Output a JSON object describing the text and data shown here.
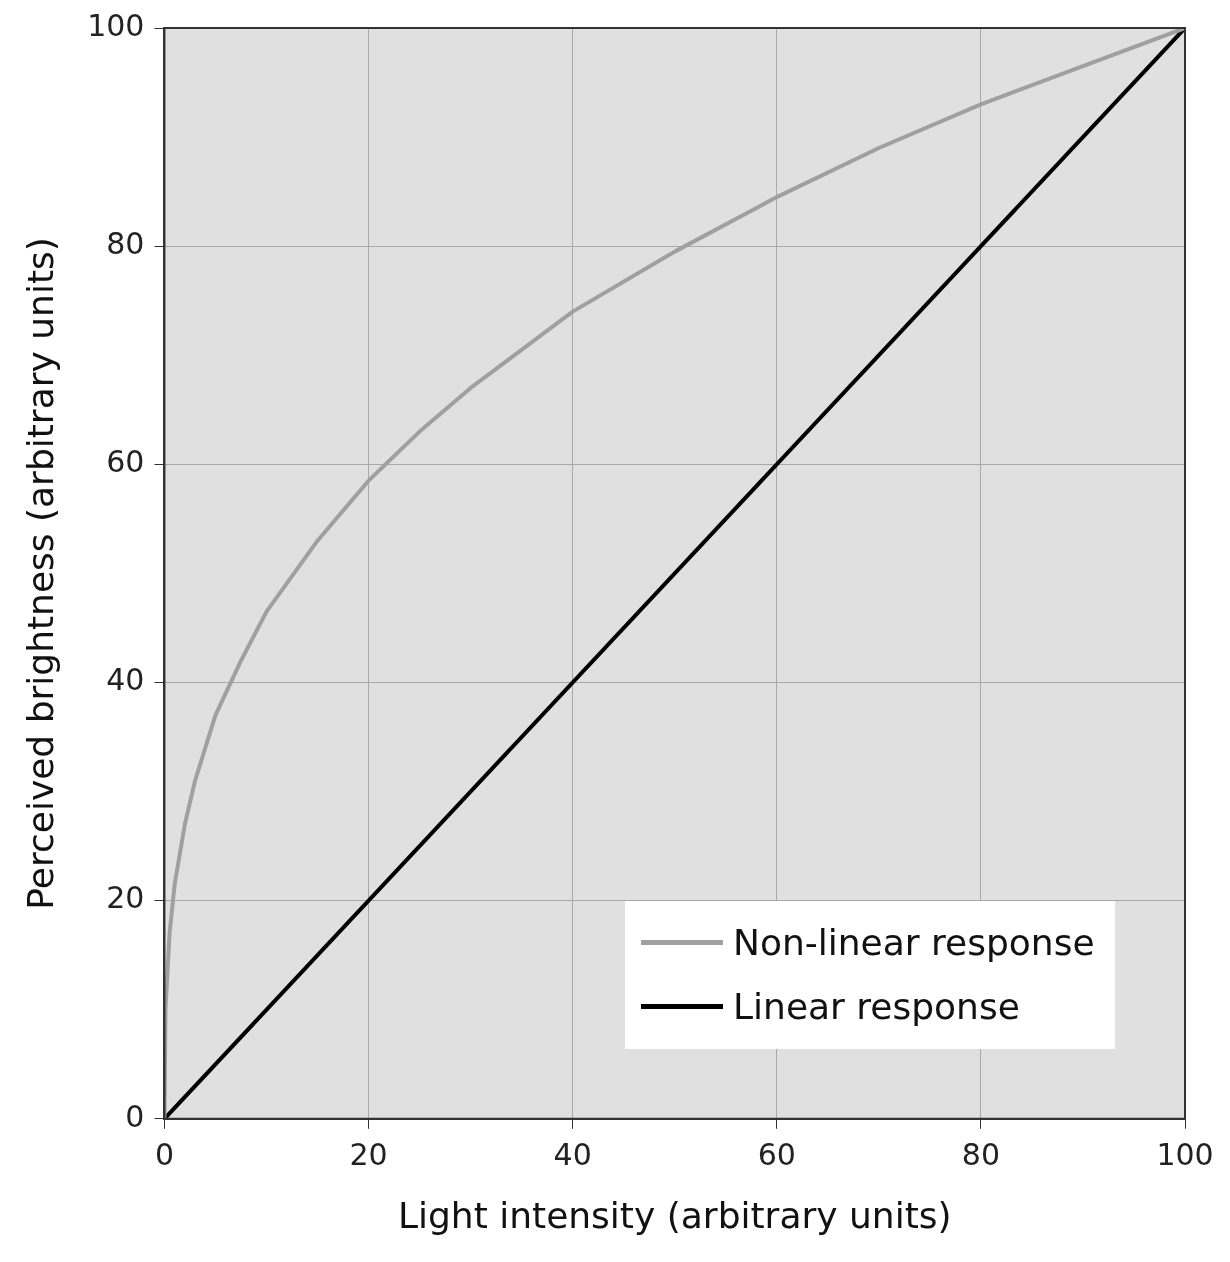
{
  "chart_data": {
    "type": "line",
    "xlabel": "Light intensity (arbitrary units)",
    "ylabel": "Perceived brightness (arbitrary units)",
    "xlim": [
      0,
      100
    ],
    "ylim": [
      0,
      100
    ],
    "xticks": [
      0,
      20,
      40,
      60,
      80,
      100
    ],
    "yticks": [
      0,
      20,
      40,
      60,
      80,
      100
    ],
    "grid": true,
    "legend": "bottom right",
    "marker": "none",
    "line_style": "solid",
    "series": [
      {
        "name": "Non-linear response",
        "color": "#a0a0a0",
        "x": [
          0,
          0.1,
          0.5,
          1,
          2,
          3,
          5,
          7.5,
          10,
          15,
          20,
          25,
          30,
          40,
          50,
          60,
          70,
          80,
          90,
          100
        ],
        "values": [
          0,
          10,
          17,
          21.5,
          27,
          31,
          37,
          42,
          46.5,
          53,
          58.5,
          63,
          67,
          74,
          79.5,
          84.5,
          89,
          93,
          96.5,
          100
        ]
      },
      {
        "name": "Linear response",
        "color": "#000000",
        "x": [
          0,
          100
        ],
        "values": [
          0,
          100
        ]
      }
    ]
  }
}
